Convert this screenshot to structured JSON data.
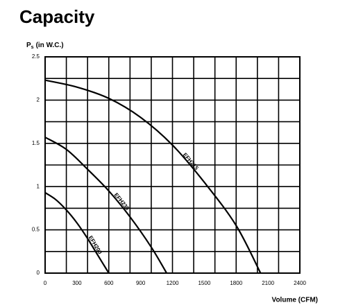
{
  "chart_data": {
    "type": "line",
    "title": "Capacity",
    "y_label": "P",
    "y_label_subscript": "s",
    "y_label_unit": "(in W.C.)",
    "x_label": "Volume (CFM)",
    "xlim": [
      0,
      2400
    ],
    "xticks": [
      0,
      300,
      600,
      900,
      1200,
      1500,
      1800,
      2100,
      2400
    ],
    "ylim": [
      0,
      2.5
    ],
    "yticks": [
      0,
      0.5,
      1,
      1.5,
      2,
      2.5
    ],
    "grid": true,
    "grid_x": [
      0,
      200,
      400,
      600,
      800,
      1000,
      1200,
      1400,
      1600,
      1800,
      2000,
      2200,
      2400
    ],
    "grid_y": [
      0,
      0.25,
      0.5,
      0.75,
      1,
      1.25,
      1.5,
      1.75,
      2,
      2.25,
      2.5
    ],
    "series": [
      {
        "name": "EFH215",
        "color": "#000000",
        "x": [
          0,
          300,
          600,
          900,
          1200,
          1500,
          1800,
          2030
        ],
        "values": [
          2.23,
          2.15,
          2.02,
          1.8,
          1.48,
          1.05,
          0.55,
          0
        ]
      },
      {
        "name": "EFH230",
        "color": "#000000",
        "x": [
          0,
          200,
          400,
          600,
          800,
          1000,
          1145
        ],
        "values": [
          1.57,
          1.43,
          1.2,
          0.95,
          0.65,
          0.3,
          0
        ]
      },
      {
        "name": "EFH200",
        "color": "#000000",
        "x": [
          0,
          100,
          200,
          300,
          400,
          500,
          600
        ],
        "values": [
          0.93,
          0.85,
          0.73,
          0.58,
          0.4,
          0.2,
          0
        ]
      }
    ]
  }
}
